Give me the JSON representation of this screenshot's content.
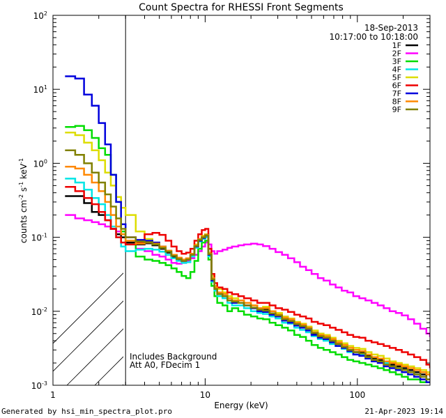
{
  "chart_data": {
    "type": "line",
    "title": "Count Spectra for RHESSI Front Segments",
    "xlabel": "Energy (keV)",
    "ylabel_base": "counts cm",
    "ylabel_exp1": "-2",
    "ylabel_mid": " s",
    "ylabel_exp2": "-1",
    "ylabel_end": " keV",
    "ylabel_exp3": "-1",
    "xscale": "log",
    "yscale": "log",
    "xlim": [
      1,
      300
    ],
    "ylim": [
      0.001,
      100
    ],
    "x_tick_labels": [
      {
        "value": 1,
        "label": "1"
      },
      {
        "value": 10,
        "label": "10"
      },
      {
        "value": 100,
        "label": "100"
      }
    ],
    "y_tick_labels": [
      {
        "value": 100,
        "base": "10",
        "exp": "2"
      },
      {
        "value": 10,
        "base": "10",
        "exp": "1"
      },
      {
        "value": 1,
        "base": "10",
        "exp": "0"
      },
      {
        "value": 0.1,
        "base": "10",
        "exp": "-1"
      },
      {
        "value": 0.01,
        "base": "10",
        "exp": "-2"
      },
      {
        "value": 0.001,
        "base": "10",
        "exp": "-3"
      }
    ],
    "date": "18-Sep-2013",
    "time_range": "10:17:00 to 10:18:00",
    "annotation_lines": [
      "Includes Background",
      "Att A0, FDecim 1"
    ],
    "hatched_region_kev": [
      1,
      3
    ],
    "energies_kev": [
      1.2,
      1.4,
      1.6,
      1.8,
      2.0,
      2.2,
      2.4,
      2.6,
      2.8,
      3.0,
      3.5,
      4.0,
      4.5,
      5.0,
      5.5,
      6.0,
      6.5,
      7.0,
      7.5,
      8.0,
      8.5,
      9.0,
      9.5,
      10.0,
      10.5,
      11.0,
      11.5,
      12.0,
      13.0,
      14.0,
      15.0,
      16.5,
      18.0,
      20.0,
      22.0,
      24.0,
      26.5,
      29.0,
      32.0,
      35.0,
      38.5,
      42.0,
      46.0,
      50.0,
      55.0,
      60.0,
      66.0,
      72.0,
      79.0,
      86.0,
      94.0,
      103.0,
      113.0,
      124.0,
      136.0,
      149.0,
      163.0,
      179.0,
      196.0,
      215.0,
      236.0,
      259.0,
      284.0,
      300.0
    ],
    "series": [
      {
        "name": "1F",
        "color": "#000000",
        "values": [
          0.36,
          0.36,
          0.29,
          0.22,
          0.2,
          0.17,
          0.13,
          0.11,
          0.1,
          0.085,
          0.08,
          0.083,
          0.078,
          0.07,
          0.062,
          0.055,
          0.05,
          0.048,
          0.05,
          0.058,
          0.075,
          0.09,
          0.1,
          0.11,
          0.06,
          0.028,
          0.021,
          0.018,
          0.017,
          0.014,
          0.014,
          0.013,
          0.012,
          0.011,
          0.01,
          0.0105,
          0.009,
          0.0085,
          0.0075,
          0.0072,
          0.0065,
          0.0062,
          0.006,
          0.005,
          0.0047,
          0.0045,
          0.004,
          0.0036,
          0.0035,
          0.003,
          0.0028,
          0.0028,
          0.0025,
          0.0023,
          0.0022,
          0.002,
          0.0019,
          0.0018,
          0.0017,
          0.0016,
          0.0015,
          0.0014,
          0.0012,
          0.0012
        ]
      },
      {
        "name": "2F",
        "color": "#ff00ff",
        "values": [
          0.2,
          0.18,
          0.17,
          0.16,
          0.15,
          0.14,
          0.13,
          0.12,
          0.11,
          0.1,
          0.07,
          0.065,
          0.058,
          0.055,
          0.05,
          0.045,
          0.044,
          0.045,
          0.048,
          0.052,
          0.058,
          0.065,
          0.075,
          0.085,
          0.08,
          0.065,
          0.06,
          0.065,
          0.068,
          0.072,
          0.075,
          0.078,
          0.08,
          0.082,
          0.08,
          0.076,
          0.07,
          0.063,
          0.058,
          0.052,
          0.046,
          0.04,
          0.036,
          0.032,
          0.028,
          0.026,
          0.023,
          0.021,
          0.019,
          0.018,
          0.016,
          0.015,
          0.014,
          0.013,
          0.012,
          0.011,
          0.01,
          0.0095,
          0.0088,
          0.0078,
          0.0068,
          0.0058,
          0.005,
          0.0045
        ]
      },
      {
        "name": "3F",
        "color": "#00dd00",
        "values": [
          3.1,
          3.2,
          2.8,
          2.2,
          1.6,
          1.3,
          0.7,
          0.3,
          0.12,
          0.08,
          0.055,
          0.05,
          0.048,
          0.045,
          0.042,
          0.038,
          0.034,
          0.03,
          0.028,
          0.034,
          0.048,
          0.07,
          0.085,
          0.09,
          0.05,
          0.022,
          0.016,
          0.013,
          0.012,
          0.01,
          0.011,
          0.01,
          0.009,
          0.0085,
          0.008,
          0.0078,
          0.007,
          0.0065,
          0.006,
          0.0055,
          0.0048,
          0.0045,
          0.004,
          0.0035,
          0.0032,
          0.003,
          0.0028,
          0.0026,
          0.0024,
          0.0022,
          0.0021,
          0.002,
          0.0019,
          0.0018,
          0.0017,
          0.0016,
          0.0015,
          0.0014,
          0.0013,
          0.0012,
          0.0012,
          0.0011,
          0.0011,
          0.0011
        ]
      },
      {
        "name": "4F",
        "color": "#00e5e5",
        "values": [
          0.62,
          0.55,
          0.44,
          0.34,
          0.28,
          0.2,
          0.14,
          0.1,
          0.075,
          0.065,
          0.068,
          0.07,
          0.068,
          0.064,
          0.058,
          0.052,
          0.048,
          0.045,
          0.046,
          0.055,
          0.072,
          0.088,
          0.095,
          0.1,
          0.055,
          0.025,
          0.019,
          0.016,
          0.015,
          0.013,
          0.012,
          0.012,
          0.011,
          0.01,
          0.0095,
          0.0092,
          0.0085,
          0.008,
          0.007,
          0.0068,
          0.006,
          0.0056,
          0.0052,
          0.0046,
          0.0042,
          0.004,
          0.0036,
          0.0034,
          0.0031,
          0.0028,
          0.0026,
          0.0026,
          0.0024,
          0.0022,
          0.0021,
          0.002,
          0.0018,
          0.0017,
          0.0016,
          0.0015,
          0.0014,
          0.0013,
          0.0012,
          0.0012
        ]
      },
      {
        "name": "5F",
        "color": "#dddd00",
        "values": [
          2.6,
          2.4,
          1.9,
          1.5,
          1.1,
          0.75,
          0.5,
          0.35,
          0.25,
          0.2,
          0.12,
          0.095,
          0.085,
          0.075,
          0.065,
          0.058,
          0.052,
          0.05,
          0.052,
          0.06,
          0.08,
          0.095,
          0.105,
          0.11,
          0.062,
          0.03,
          0.022,
          0.02,
          0.018,
          0.016,
          0.015,
          0.014,
          0.013,
          0.012,
          0.011,
          0.0115,
          0.01,
          0.0095,
          0.0085,
          0.008,
          0.0072,
          0.0068,
          0.0062,
          0.0055,
          0.005,
          0.0048,
          0.0044,
          0.004,
          0.0037,
          0.0034,
          0.0032,
          0.0031,
          0.0028,
          0.0026,
          0.0025,
          0.0023,
          0.0021,
          0.002,
          0.0019,
          0.0018,
          0.0017,
          0.0016,
          0.0015,
          0.0014
        ]
      },
      {
        "name": "6F",
        "color": "#ee0000",
        "values": [
          0.48,
          0.42,
          0.34,
          0.28,
          0.22,
          0.17,
          0.13,
          0.1,
          0.085,
          0.08,
          0.085,
          0.11,
          0.115,
          0.108,
          0.09,
          0.075,
          0.065,
          0.06,
          0.062,
          0.07,
          0.09,
          0.11,
          0.125,
          0.13,
          0.07,
          0.032,
          0.024,
          0.021,
          0.02,
          0.018,
          0.017,
          0.016,
          0.015,
          0.014,
          0.013,
          0.013,
          0.012,
          0.011,
          0.0105,
          0.0098,
          0.009,
          0.0085,
          0.008,
          0.0072,
          0.0068,
          0.0065,
          0.006,
          0.0056,
          0.0052,
          0.0048,
          0.0045,
          0.0044,
          0.004,
          0.0038,
          0.0036,
          0.0034,
          0.0032,
          0.003,
          0.0028,
          0.0026,
          0.0024,
          0.0022,
          0.0019,
          0.0017
        ]
      },
      {
        "name": "7F",
        "color": "#0000dd",
        "values": [
          15.0,
          14.0,
          8.5,
          6.0,
          3.5,
          1.8,
          0.7,
          0.3,
          0.15,
          0.1,
          0.092,
          0.09,
          0.085,
          0.075,
          0.065,
          0.058,
          0.052,
          0.048,
          0.05,
          0.058,
          0.075,
          0.09,
          0.098,
          0.105,
          0.058,
          0.026,
          0.02,
          0.017,
          0.016,
          0.014,
          0.013,
          0.013,
          0.012,
          0.011,
          0.01,
          0.0098,
          0.009,
          0.0085,
          0.0075,
          0.007,
          0.0064,
          0.006,
          0.0055,
          0.0048,
          0.0044,
          0.0042,
          0.0038,
          0.0034,
          0.0032,
          0.0029,
          0.0026,
          0.0025,
          0.0023,
          0.0021,
          0.002,
          0.0018,
          0.0017,
          0.0016,
          0.0015,
          0.0014,
          0.0013,
          0.0012,
          0.0011,
          0.0011
        ]
      },
      {
        "name": "8F",
        "color": "#ff8800",
        "values": [
          0.9,
          0.85,
          0.7,
          0.55,
          0.42,
          0.3,
          0.2,
          0.14,
          0.11,
          0.09,
          0.082,
          0.085,
          0.082,
          0.075,
          0.066,
          0.058,
          0.053,
          0.05,
          0.052,
          0.06,
          0.078,
          0.094,
          0.102,
          0.108,
          0.06,
          0.028,
          0.021,
          0.018,
          0.017,
          0.015,
          0.014,
          0.014,
          0.013,
          0.012,
          0.011,
          0.011,
          0.01,
          0.009,
          0.0082,
          0.0078,
          0.007,
          0.0066,
          0.006,
          0.0052,
          0.0048,
          0.0046,
          0.0042,
          0.0038,
          0.0035,
          0.0032,
          0.003,
          0.0029,
          0.0026,
          0.0024,
          0.0023,
          0.0021,
          0.002,
          0.0019,
          0.0018,
          0.0017,
          0.0016,
          0.0015,
          0.0014,
          0.0013
        ]
      },
      {
        "name": "9F",
        "color": "#808000",
        "values": [
          1.5,
          1.3,
          1.0,
          0.75,
          0.55,
          0.38,
          0.26,
          0.18,
          0.13,
          0.1,
          0.088,
          0.086,
          0.08,
          0.072,
          0.064,
          0.056,
          0.051,
          0.048,
          0.05,
          0.058,
          0.076,
          0.092,
          0.1,
          0.106,
          0.059,
          0.027,
          0.02,
          0.017,
          0.016,
          0.014,
          0.0135,
          0.013,
          0.012,
          0.0112,
          0.0105,
          0.0102,
          0.0094,
          0.0088,
          0.0078,
          0.0074,
          0.0067,
          0.0063,
          0.0058,
          0.0051,
          0.0046,
          0.0044,
          0.004,
          0.0036,
          0.0033,
          0.003,
          0.0028,
          0.0027,
          0.0024,
          0.0022,
          0.0021,
          0.0019,
          0.0018,
          0.0017,
          0.0016,
          0.0015,
          0.0014,
          0.0013,
          0.0012,
          0.0012
        ]
      }
    ]
  },
  "footer": {
    "left": "Generated by hsi_min_spectra_plot.pro",
    "right": "21-Apr-2023 19:14"
  }
}
